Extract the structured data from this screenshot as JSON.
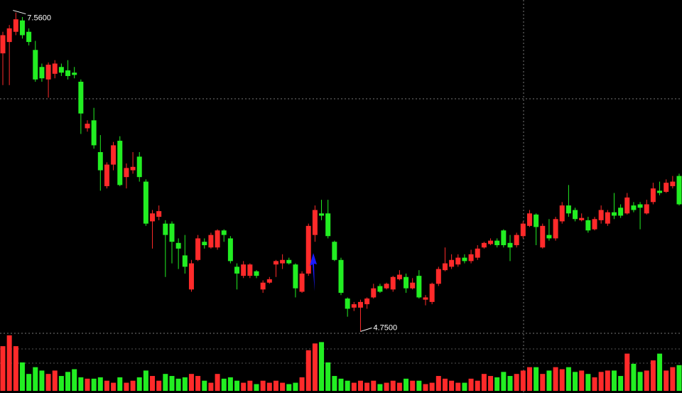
{
  "chart_data": {
    "type": "candlestick",
    "open": [
      7.2,
      7.3,
      7.39,
      7.49,
      7.39,
      7.23,
      7.08,
      6.97,
      7.02,
      7.08,
      7.05,
      7.03,
      6.95,
      6.54,
      6.61,
      6.33,
      6.03,
      6.22,
      6.43,
      6.11,
      6.17,
      6.29,
      6.07,
      5.72,
      5.76,
      5.7,
      5.7,
      5.53,
      5.42,
      5.12,
      5.38,
      5.54,
      5.49,
      5.49,
      5.64,
      5.57,
      5.32,
      5.24,
      5.24,
      5.28,
      5.12,
      5.18,
      5.34,
      5.35,
      5.38,
      5.34,
      5.1,
      5.26,
      5.6,
      5.79,
      5.79,
      5.54,
      5.38,
      5.04,
      4.96,
      4.96,
      4.99,
      5.05,
      5.15,
      5.13,
      5.12,
      5.21,
      5.23,
      5.13,
      5.24,
      5.03,
      5.01,
      5.17,
      5.29,
      5.32,
      5.34,
      5.4,
      5.37,
      5.4,
      5.49,
      5.52,
      5.55,
      5.64,
      5.53,
      5.51,
      5.59,
      5.68,
      5.78,
      5.49,
      5.6,
      5.57,
      5.72,
      5.86,
      5.82,
      5.73,
      5.73,
      5.65,
      5.73,
      5.7,
      5.8,
      5.84,
      5.79,
      5.86,
      5.87,
      5.79,
      5.89,
      5.99,
      5.98,
      6.03,
      6.12
    ],
    "high": [
      7.39,
      7.45,
      7.56,
      7.52,
      7.42,
      7.31,
      7.11,
      7.12,
      7.14,
      7.11,
      7.14,
      7.08,
      6.97,
      6.61,
      6.72,
      6.48,
      6.24,
      6.42,
      6.47,
      6.23,
      6.33,
      6.33,
      6.09,
      5.82,
      5.86,
      5.73,
      5.72,
      5.57,
      5.6,
      5.38,
      5.6,
      5.57,
      5.62,
      5.65,
      5.65,
      5.59,
      5.35,
      5.37,
      5.35,
      5.29,
      5.2,
      5.23,
      5.38,
      5.43,
      5.4,
      5.35,
      5.28,
      5.7,
      5.86,
      5.91,
      5.91,
      5.55,
      5.4,
      5.05,
      5.01,
      5.03,
      5.05,
      5.17,
      5.17,
      5.18,
      5.24,
      5.29,
      5.26,
      5.22,
      5.29,
      5.07,
      5.18,
      5.32,
      5.49,
      5.43,
      5.43,
      5.43,
      5.47,
      5.51,
      5.54,
      5.57,
      5.57,
      5.65,
      5.6,
      5.62,
      5.72,
      5.82,
      5.79,
      5.7,
      5.74,
      5.76,
      5.89,
      6.04,
      5.84,
      5.79,
      5.76,
      5.76,
      5.86,
      5.82,
      5.97,
      5.87,
      5.97,
      5.89,
      5.89,
      5.91,
      6.06,
      6.07,
      6.09,
      6.12,
      6.14
    ],
    "low": [
      6.92,
      6.92,
      7.36,
      7.33,
      7.27,
      6.95,
      6.95,
      6.81,
      6.98,
      7.0,
      6.97,
      6.98,
      6.49,
      6.51,
      6.36,
      5.99,
      6.01,
      6.17,
      6.03,
      6.01,
      6.14,
      6.07,
      5.68,
      5.48,
      5.73,
      5.23,
      5.35,
      5.3,
      5.26,
      5.1,
      5.37,
      5.48,
      5.48,
      5.47,
      5.54,
      5.35,
      5.12,
      5.22,
      5.22,
      5.22,
      5.09,
      5.17,
      5.23,
      5.3,
      5.34,
      5.05,
      5.09,
      5.24,
      5.54,
      5.73,
      5.57,
      5.37,
      5.07,
      4.88,
      4.93,
      4.75,
      4.95,
      5.04,
      5.09,
      5.12,
      5.1,
      5.2,
      5.09,
      5.12,
      5.04,
      4.98,
      4.99,
      5.15,
      5.28,
      5.3,
      5.32,
      5.35,
      5.35,
      5.38,
      5.48,
      5.51,
      5.49,
      5.49,
      5.37,
      5.49,
      5.57,
      5.67,
      5.51,
      5.48,
      5.55,
      5.55,
      5.7,
      5.76,
      5.72,
      5.72,
      5.62,
      5.64,
      5.7,
      5.68,
      5.74,
      5.75,
      5.78,
      5.8,
      5.65,
      5.78,
      5.87,
      5.95,
      5.97,
      6.01,
      5.86
    ],
    "close": [
      7.36,
      7.42,
      7.5,
      7.36,
      7.3,
      6.97,
      6.98,
      7.1,
      7.11,
      7.03,
      7.0,
      7.01,
      6.67,
      6.58,
      6.39,
      6.17,
      6.22,
      6.39,
      6.04,
      6.19,
      6.2,
      6.11,
      5.7,
      5.79,
      5.81,
      5.6,
      5.54,
      5.48,
      5.32,
      5.35,
      5.57,
      5.51,
      5.6,
      5.64,
      5.6,
      5.37,
      5.26,
      5.34,
      5.34,
      5.24,
      5.18,
      5.21,
      5.37,
      5.38,
      5.35,
      5.13,
      5.26,
      5.68,
      5.82,
      5.77,
      5.59,
      5.38,
      5.09,
      4.95,
      4.99,
      5.01,
      5.04,
      5.13,
      5.1,
      5.17,
      5.23,
      5.25,
      5.13,
      5.18,
      5.05,
      5.05,
      5.17,
      5.3,
      5.35,
      5.38,
      5.4,
      5.37,
      5.43,
      5.48,
      5.53,
      5.55,
      5.51,
      5.51,
      5.49,
      5.6,
      5.7,
      5.79,
      5.67,
      5.68,
      5.57,
      5.74,
      5.86,
      5.79,
      5.74,
      5.75,
      5.64,
      5.74,
      5.82,
      5.8,
      5.77,
      5.77,
      5.93,
      5.82,
      5.84,
      5.87,
      6.01,
      5.97,
      6.06,
      6.07,
      5.87
    ],
    "volume": [
      66,
      82,
      66,
      42,
      25,
      35,
      30,
      25,
      30,
      22,
      28,
      32,
      20,
      18,
      18,
      20,
      15,
      12,
      20,
      12,
      15,
      20,
      30,
      22,
      15,
      25,
      22,
      18,
      20,
      25,
      22,
      15,
      12,
      25,
      18,
      20,
      15,
      12,
      15,
      10,
      15,
      12,
      15,
      12,
      10,
      12,
      20,
      60,
      70,
      72,
      42,
      22,
      18,
      15,
      12,
      15,
      12,
      15,
      10,
      12,
      15,
      12,
      18,
      15,
      15,
      10,
      12,
      22,
      18,
      15,
      12,
      12,
      18,
      15,
      25,
      22,
      20,
      28,
      22,
      25,
      30,
      35,
      35,
      25,
      30,
      35,
      32,
      35,
      28,
      30,
      25,
      20,
      28,
      30,
      30,
      22,
      55,
      40,
      28,
      30,
      45,
      55,
      30,
      35,
      38
    ],
    "ylim": [
      4.74,
      7.67
    ],
    "volume_lim": [
      0,
      85
    ],
    "hlines": [
      6.8
    ],
    "up_color": "#ff2a2a",
    "down_color": "#22ee22",
    "max_label": "7.5600",
    "min_label": "4.7500"
  }
}
